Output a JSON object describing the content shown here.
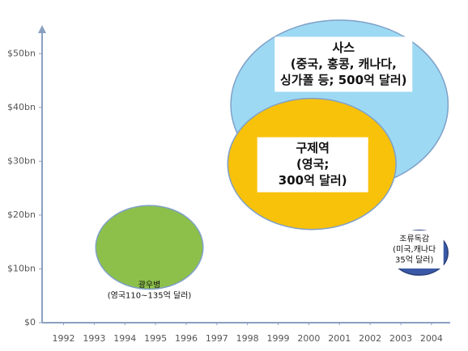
{
  "chart_data": {
    "type": "bubble",
    "xlim": [
      1991.3,
      2004.4
    ],
    "xticks": [
      1992,
      1993,
      1994,
      1995,
      1996,
      1997,
      1998,
      1999,
      2000,
      2001,
      2002,
      2003,
      2004
    ],
    "ylim": [
      0,
      55
    ],
    "yticks": [
      {
        "value": 0,
        "label": "$0"
      },
      {
        "value": 10,
        "label": "$10bn"
      },
      {
        "value": 20,
        "label": "$20bn"
      },
      {
        "value": 30,
        "label": "$30bn"
      },
      {
        "value": 40,
        "label": "$40bn"
      },
      {
        "value": 50,
        "label": "$50bn"
      }
    ],
    "points": [
      {
        "label": [
          "광우병",
          "(영국110~135억 달러)"
        ],
        "x": 1994.8,
        "y": 14,
        "size": 122,
        "color": "#8dc04a"
      },
      {
        "label": [
          "사스",
          "(중국, 홍콩, 캐나다,",
          "싱가폴 등; 500억 달러)"
        ],
        "x": 2001,
        "y": 40.5,
        "size": 500,
        "color": "#9dd9f3"
      },
      {
        "label": [
          "구제역",
          "(영국;",
          "300억 달러)"
        ],
        "x": 2000.1,
        "y": 29.5,
        "size": 300,
        "color": "#f9c20a"
      },
      {
        "label": [
          "조류독감",
          "(미국,캐나다",
          "35억 달러)"
        ],
        "x": 2003.6,
        "y": 13,
        "size": 35,
        "color": "#3a5aa5"
      }
    ]
  }
}
